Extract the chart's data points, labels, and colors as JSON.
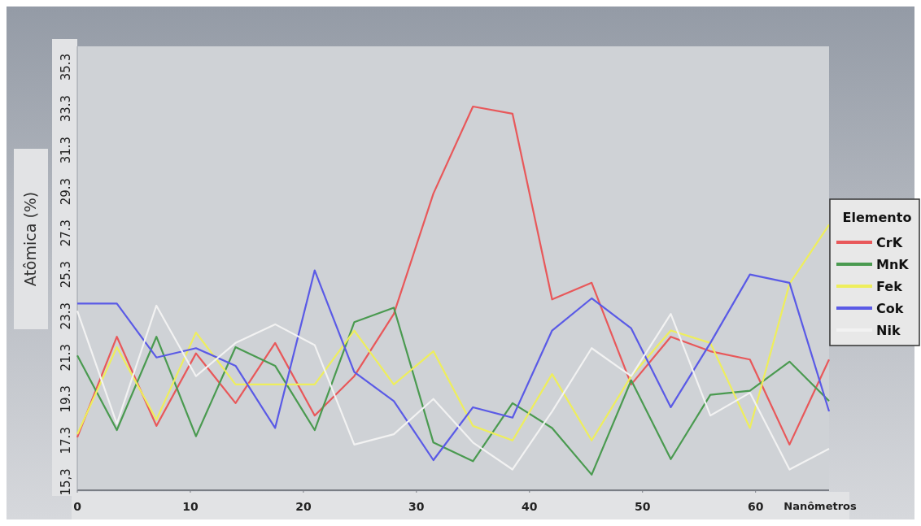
{
  "chart_data": {
    "type": "line",
    "xlabel": "Nanômetros",
    "ylabel": "Atômica (%)",
    "legend_title": "Elemento",
    "x": [
      0,
      3.5,
      7,
      10.5,
      14,
      17.5,
      21,
      24.5,
      28,
      31.5,
      35,
      38.5,
      42,
      45.5,
      49,
      52.5,
      56,
      59.5,
      63,
      66.5
    ],
    "series": [
      {
        "name": "CrK",
        "color": "#e8585a",
        "values": [
          17.45,
          22.3,
          18.0,
          21.5,
          19.1,
          22.0,
          18.5,
          20.4,
          23.4,
          29.2,
          33.4,
          33.05,
          24.1,
          24.9,
          20.0,
          22.3,
          21.6,
          21.2,
          17.1,
          21.2
        ]
      },
      {
        "name": "MnK",
        "color": "#4a9a50",
        "values": [
          21.4,
          17.8,
          22.3,
          17.5,
          21.8,
          20.9,
          17.8,
          23.0,
          23.7,
          17.2,
          16.3,
          19.1,
          17.9,
          15.65,
          20.2,
          16.4,
          19.5,
          19.7,
          21.1,
          19.2
        ]
      },
      {
        "name": "Fek",
        "color": "#eeee5c",
        "values": [
          17.6,
          21.8,
          18.3,
          22.5,
          20.0,
          20.0,
          20.0,
          22.6,
          20.0,
          21.6,
          18.0,
          17.3,
          20.5,
          17.3,
          20.4,
          22.6,
          22.0,
          17.9,
          24.85,
          27.7
        ]
      },
      {
        "name": "Cok",
        "color": "#5a5ae6",
        "values": [
          23.9,
          23.9,
          21.3,
          21.75,
          20.9,
          17.9,
          25.5,
          20.6,
          19.2,
          16.35,
          18.9,
          18.4,
          22.6,
          24.15,
          22.7,
          18.9,
          22.0,
          25.3,
          24.9,
          18.7
        ]
      },
      {
        "name": "Nik",
        "color": "#f2f2f2",
        "values": [
          23.55,
          18.1,
          23.8,
          20.4,
          22.0,
          22.9,
          21.9,
          17.1,
          17.6,
          19.3,
          17.2,
          15.9,
          18.7,
          21.75,
          20.4,
          23.4,
          18.5,
          19.6,
          15.9,
          16.9
        ]
      }
    ],
    "xlim": [
      0,
      66.5
    ],
    "xticks": [
      0,
      10,
      20,
      30,
      40,
      50,
      60
    ],
    "ylim": [
      14.9,
      36.3
    ],
    "yticks": [
      {
        "value": 15.3,
        "label": "15,3"
      },
      17.3,
      19.3,
      21.3,
      23.3,
      25.3,
      27.3,
      29.3,
      31.3,
      33.3,
      35.3
    ],
    "legend": "right",
    "grid": false,
    "marker": "none",
    "line_style": "solid"
  }
}
